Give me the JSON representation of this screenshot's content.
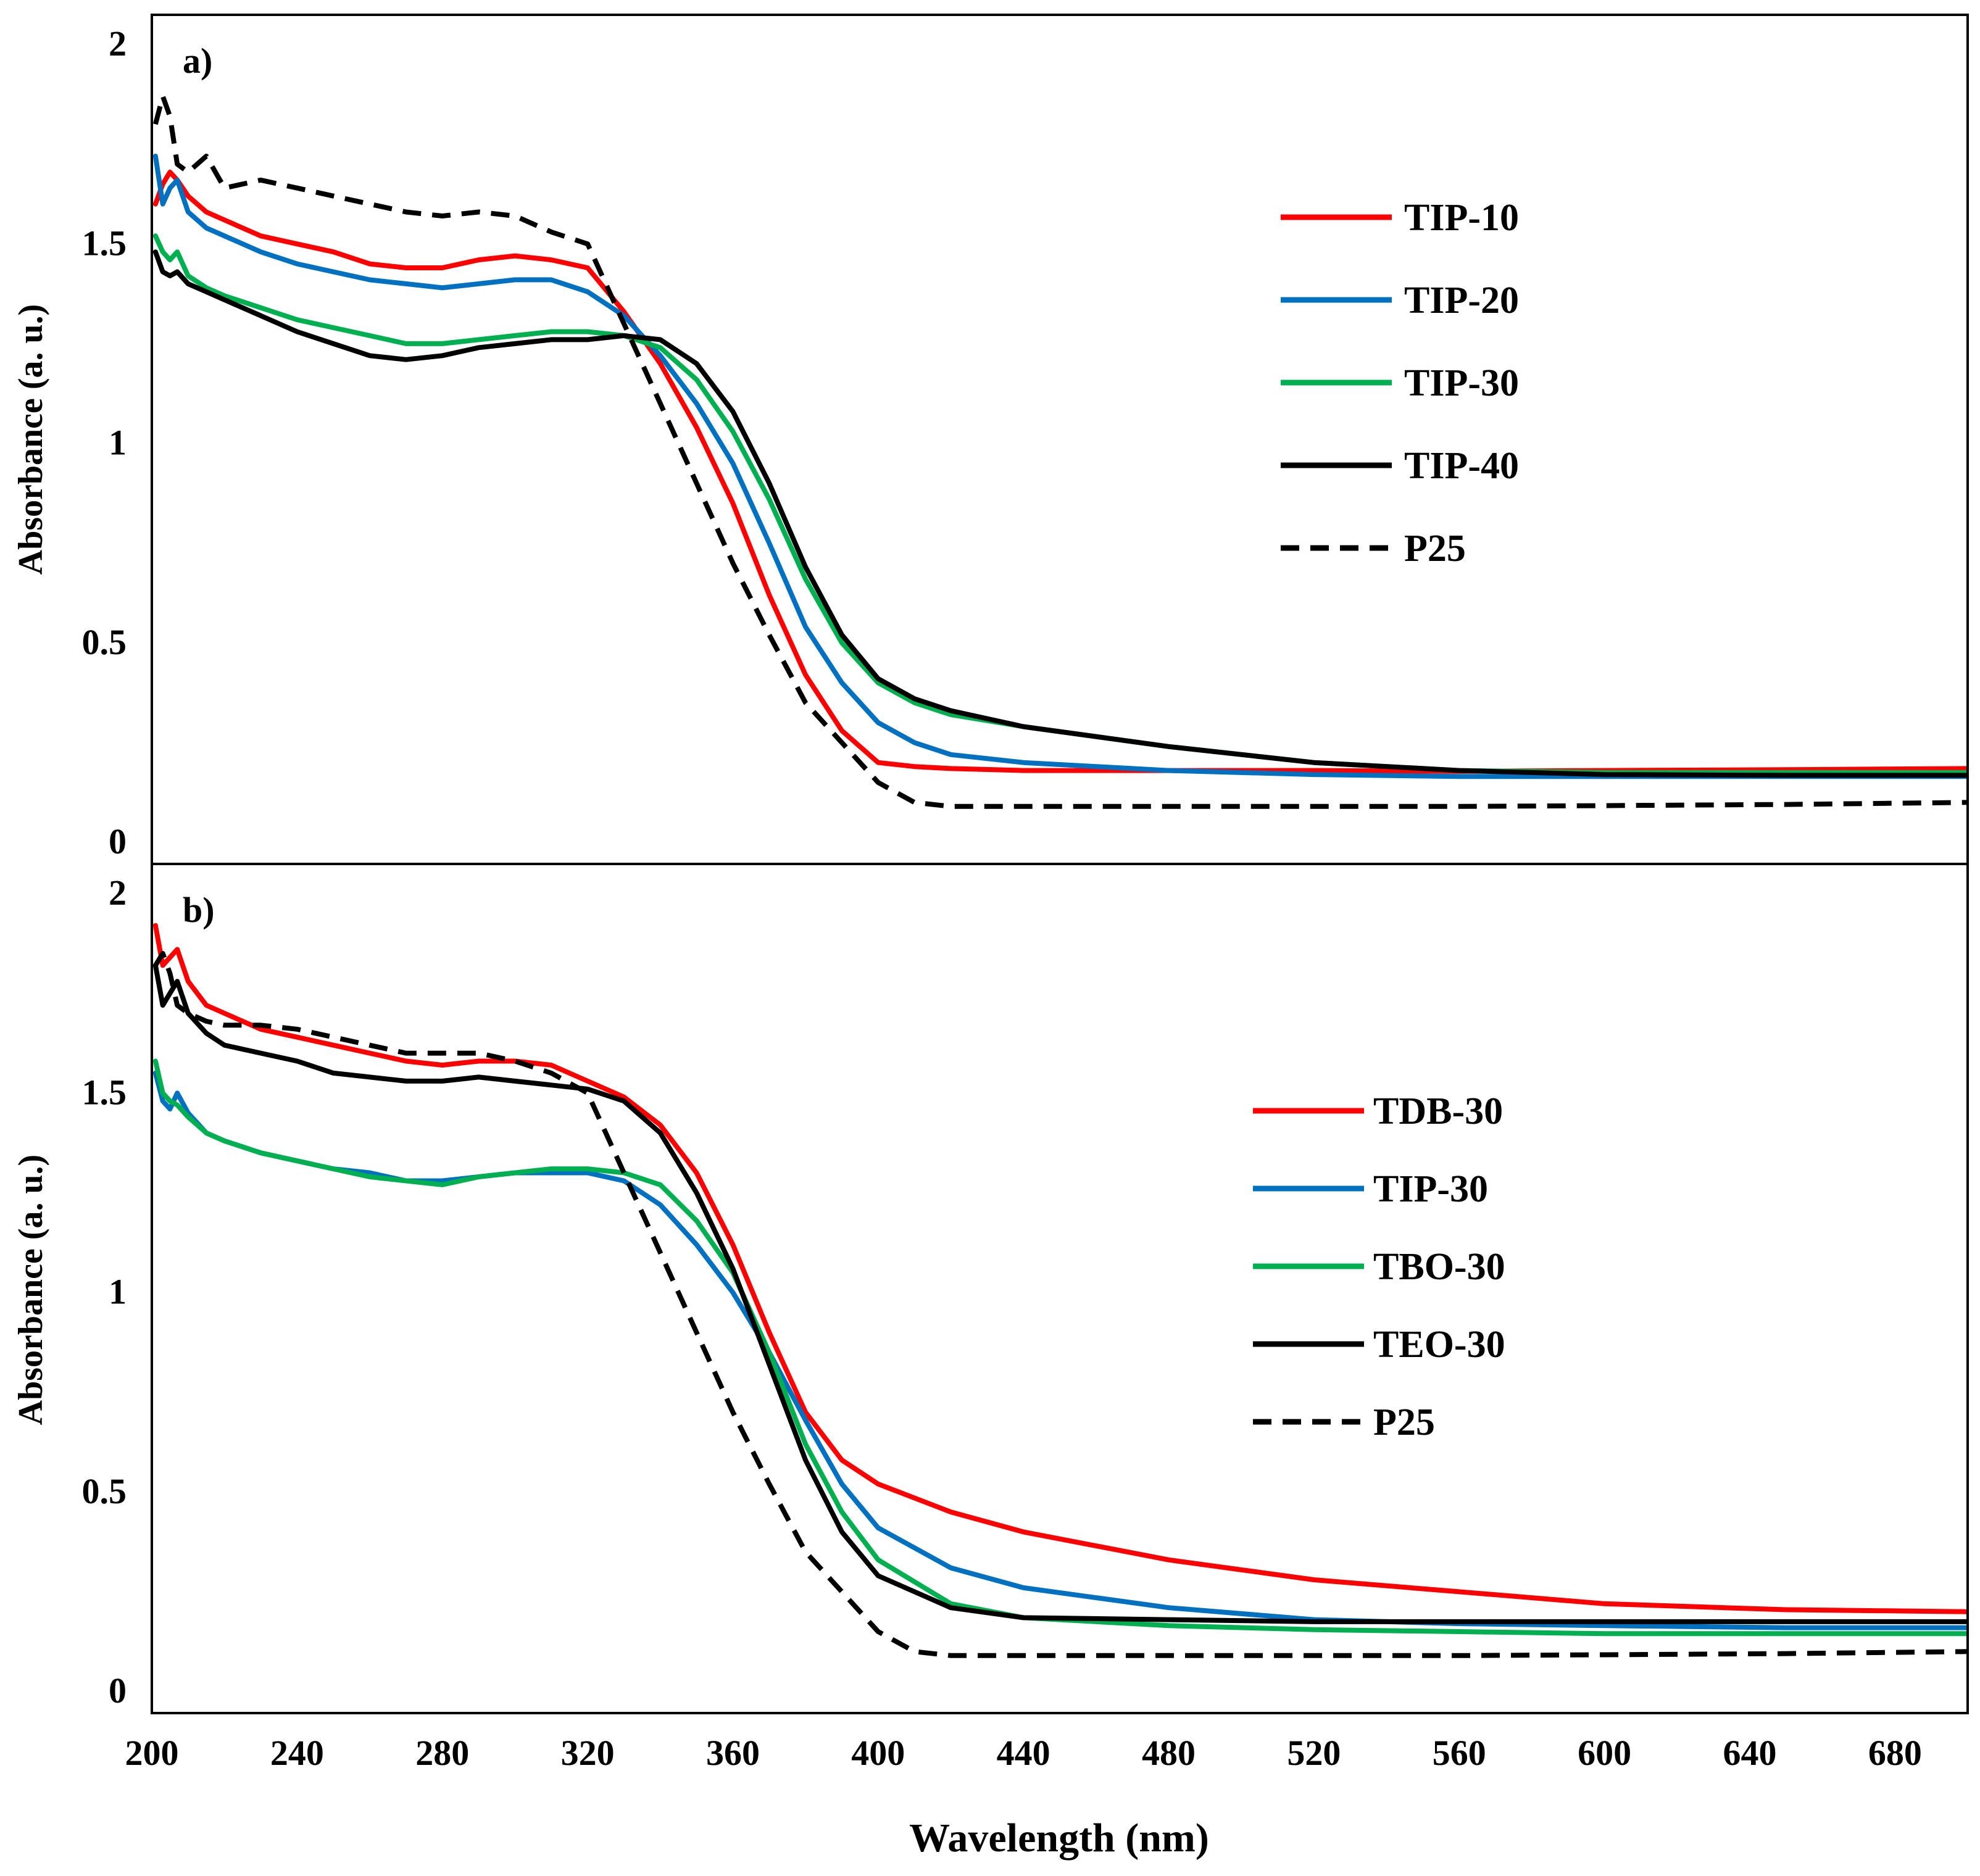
{
  "colors": {
    "red": "#ff0000",
    "blue": "#0070c0",
    "green": "#00b050",
    "black": "#000000"
  },
  "figure": {
    "xlabel": "Wavelength (nm)"
  },
  "chart_data": [
    {
      "type": "line",
      "panel_label": "a)",
      "ylabel": "Absorbance (a. u.)",
      "xlim": [
        200,
        700
      ],
      "ylim": [
        0,
        2
      ],
      "xticks": [
        "200",
        "240",
        "280",
        "320",
        "360",
        "400",
        "440",
        "480",
        "520",
        "560",
        "600",
        "640",
        "680"
      ],
      "yticks": [
        "0",
        "0.5",
        "1",
        "1.5",
        "2"
      ],
      "legend_position": "upper-right",
      "series": [
        {
          "name": "TIP-10",
          "color": "#ff0000",
          "dash": "solid",
          "x": [
            201,
            203,
            205,
            207,
            210,
            215,
            220,
            230,
            240,
            250,
            260,
            270,
            280,
            290,
            300,
            310,
            320,
            330,
            340,
            350,
            360,
            370,
            380,
            390,
            400,
            410,
            420,
            440,
            480,
            520,
            560,
            600,
            650,
            700
          ],
          "y": [
            1.6,
            1.65,
            1.68,
            1.66,
            1.62,
            1.58,
            1.56,
            1.52,
            1.5,
            1.48,
            1.45,
            1.44,
            1.44,
            1.46,
            1.47,
            1.46,
            1.44,
            1.33,
            1.2,
            1.04,
            0.85,
            0.62,
            0.42,
            0.28,
            0.2,
            0.19,
            0.185,
            0.18,
            0.18,
            0.18,
            0.178,
            0.18,
            0.182,
            0.185
          ]
        },
        {
          "name": "TIP-20",
          "color": "#0070c0",
          "dash": "solid",
          "x": [
            201,
            203,
            205,
            207,
            210,
            215,
            220,
            230,
            240,
            250,
            260,
            270,
            280,
            290,
            300,
            310,
            320,
            330,
            340,
            350,
            360,
            370,
            380,
            390,
            400,
            410,
            420,
            440,
            480,
            520,
            560,
            600,
            650,
            700
          ],
          "y": [
            1.72,
            1.6,
            1.64,
            1.66,
            1.58,
            1.54,
            1.52,
            1.48,
            1.45,
            1.43,
            1.41,
            1.4,
            1.39,
            1.4,
            1.41,
            1.41,
            1.38,
            1.32,
            1.22,
            1.1,
            0.95,
            0.75,
            0.54,
            0.4,
            0.3,
            0.25,
            0.22,
            0.2,
            0.18,
            0.17,
            0.165,
            0.165,
            0.165,
            0.165
          ]
        },
        {
          "name": "TIP-30",
          "color": "#00b050",
          "dash": "solid",
          "x": [
            201,
            203,
            205,
            207,
            210,
            215,
            220,
            230,
            240,
            250,
            260,
            270,
            280,
            290,
            300,
            310,
            320,
            330,
            340,
            350,
            360,
            370,
            380,
            390,
            400,
            410,
            420,
            440,
            480,
            520,
            560,
            600,
            650,
            700
          ],
          "y": [
            1.52,
            1.48,
            1.46,
            1.48,
            1.42,
            1.39,
            1.37,
            1.34,
            1.31,
            1.29,
            1.27,
            1.25,
            1.25,
            1.26,
            1.27,
            1.28,
            1.28,
            1.27,
            1.24,
            1.16,
            1.03,
            0.86,
            0.66,
            0.5,
            0.4,
            0.35,
            0.32,
            0.29,
            0.24,
            0.2,
            0.18,
            0.175,
            0.175,
            0.175
          ]
        },
        {
          "name": "TIP-40",
          "color": "#000000",
          "dash": "solid",
          "x": [
            201,
            203,
            205,
            207,
            210,
            215,
            220,
            230,
            240,
            250,
            260,
            270,
            280,
            290,
            300,
            310,
            320,
            330,
            340,
            350,
            360,
            370,
            380,
            390,
            400,
            410,
            420,
            440,
            480,
            520,
            560,
            600,
            650,
            700
          ],
          "y": [
            1.48,
            1.43,
            1.42,
            1.43,
            1.4,
            1.38,
            1.36,
            1.32,
            1.28,
            1.25,
            1.22,
            1.21,
            1.22,
            1.24,
            1.25,
            1.26,
            1.26,
            1.27,
            1.26,
            1.2,
            1.08,
            0.9,
            0.69,
            0.52,
            0.41,
            0.36,
            0.33,
            0.29,
            0.24,
            0.2,
            0.18,
            0.17,
            0.168,
            0.168
          ]
        },
        {
          "name": "P25",
          "color": "#000000",
          "dash": "dashed",
          "x": [
            201,
            203,
            205,
            207,
            210,
            215,
            220,
            230,
            240,
            250,
            260,
            270,
            280,
            290,
            300,
            310,
            320,
            330,
            340,
            350,
            360,
            370,
            380,
            390,
            400,
            410,
            420,
            440,
            480,
            520,
            560,
            600,
            650,
            700
          ],
          "y": [
            1.8,
            1.87,
            1.82,
            1.7,
            1.68,
            1.72,
            1.64,
            1.66,
            1.64,
            1.62,
            1.6,
            1.58,
            1.57,
            1.58,
            1.57,
            1.53,
            1.5,
            1.3,
            1.1,
            0.9,
            0.7,
            0.52,
            0.35,
            0.25,
            0.15,
            0.1,
            0.09,
            0.09,
            0.09,
            0.09,
            0.09,
            0.092,
            0.095,
            0.1
          ]
        }
      ]
    },
    {
      "type": "line",
      "panel_label": "b)",
      "ylabel": "Absorbance  (a. u.)",
      "xlim": [
        200,
        700
      ],
      "ylim": [
        0,
        2
      ],
      "xticks": [
        "200",
        "240",
        "280",
        "320",
        "360",
        "400",
        "440",
        "480",
        "520",
        "560",
        "600",
        "640",
        "680"
      ],
      "yticks": [
        "0",
        "0.5",
        "1",
        "1.5",
        "2"
      ],
      "legend_position": "upper-right",
      "series": [
        {
          "name": "TDB-30",
          "color": "#ff0000",
          "dash": "solid",
          "x": [
            201,
            203,
            205,
            207,
            210,
            215,
            220,
            230,
            240,
            250,
            260,
            270,
            280,
            290,
            300,
            310,
            320,
            330,
            340,
            350,
            360,
            370,
            380,
            390,
            400,
            420,
            440,
            480,
            520,
            560,
            600,
            650,
            700
          ],
          "y": [
            1.92,
            1.82,
            1.84,
            1.86,
            1.78,
            1.72,
            1.7,
            1.66,
            1.64,
            1.62,
            1.6,
            1.58,
            1.57,
            1.58,
            1.58,
            1.57,
            1.53,
            1.49,
            1.42,
            1.3,
            1.12,
            0.9,
            0.7,
            0.58,
            0.52,
            0.45,
            0.4,
            0.33,
            0.28,
            0.25,
            0.22,
            0.205,
            0.2
          ]
        },
        {
          "name": "TIP-30",
          "color": "#0070c0",
          "dash": "solid",
          "x": [
            201,
            203,
            205,
            207,
            210,
            215,
            220,
            230,
            240,
            250,
            260,
            270,
            280,
            290,
            300,
            310,
            320,
            330,
            340,
            350,
            360,
            370,
            380,
            390,
            400,
            420,
            440,
            480,
            520,
            560,
            600,
            650,
            700
          ],
          "y": [
            1.55,
            1.48,
            1.46,
            1.5,
            1.45,
            1.4,
            1.38,
            1.35,
            1.33,
            1.31,
            1.3,
            1.28,
            1.28,
            1.29,
            1.3,
            1.3,
            1.3,
            1.28,
            1.22,
            1.12,
            1.0,
            0.85,
            0.68,
            0.52,
            0.41,
            0.31,
            0.26,
            0.21,
            0.18,
            0.17,
            0.165,
            0.16,
            0.16
          ]
        },
        {
          "name": "TBO-30",
          "color": "#00b050",
          "dash": "solid",
          "x": [
            201,
            203,
            205,
            207,
            210,
            215,
            220,
            230,
            240,
            250,
            260,
            270,
            280,
            290,
            300,
            310,
            320,
            330,
            340,
            350,
            360,
            370,
            380,
            390,
            400,
            420,
            440,
            480,
            520,
            560,
            600,
            650,
            700
          ],
          "y": [
            1.58,
            1.5,
            1.48,
            1.47,
            1.44,
            1.4,
            1.38,
            1.35,
            1.33,
            1.31,
            1.29,
            1.28,
            1.27,
            1.29,
            1.3,
            1.31,
            1.31,
            1.3,
            1.27,
            1.18,
            1.05,
            0.85,
            0.62,
            0.45,
            0.33,
            0.22,
            0.185,
            0.165,
            0.155,
            0.15,
            0.145,
            0.145,
            0.145
          ]
        },
        {
          "name": "TEO-30",
          "color": "#000000",
          "dash": "solid",
          "x": [
            201,
            203,
            205,
            207,
            210,
            215,
            220,
            230,
            240,
            250,
            260,
            270,
            280,
            290,
            300,
            310,
            320,
            330,
            340,
            350,
            360,
            370,
            380,
            390,
            400,
            420,
            440,
            480,
            520,
            560,
            600,
            650,
            700
          ],
          "y": [
            1.82,
            1.72,
            1.75,
            1.78,
            1.7,
            1.65,
            1.62,
            1.6,
            1.58,
            1.55,
            1.54,
            1.53,
            1.53,
            1.54,
            1.53,
            1.52,
            1.51,
            1.48,
            1.4,
            1.25,
            1.06,
            0.82,
            0.58,
            0.4,
            0.29,
            0.21,
            0.185,
            0.18,
            0.175,
            0.175,
            0.175,
            0.175,
            0.175
          ]
        },
        {
          "name": "P25",
          "color": "#000000",
          "dash": "dashed",
          "x": [
            201,
            203,
            205,
            207,
            210,
            215,
            220,
            230,
            240,
            250,
            260,
            270,
            280,
            290,
            300,
            310,
            320,
            330,
            340,
            350,
            360,
            370,
            380,
            390,
            400,
            410,
            420,
            440,
            480,
            520,
            560,
            600,
            650,
            700
          ],
          "y": [
            1.82,
            1.85,
            1.8,
            1.72,
            1.7,
            1.68,
            1.67,
            1.67,
            1.66,
            1.64,
            1.62,
            1.6,
            1.6,
            1.6,
            1.58,
            1.55,
            1.5,
            1.3,
            1.1,
            0.9,
            0.7,
            0.52,
            0.35,
            0.25,
            0.15,
            0.1,
            0.09,
            0.09,
            0.09,
            0.09,
            0.09,
            0.092,
            0.095,
            0.1
          ]
        }
      ]
    }
  ]
}
